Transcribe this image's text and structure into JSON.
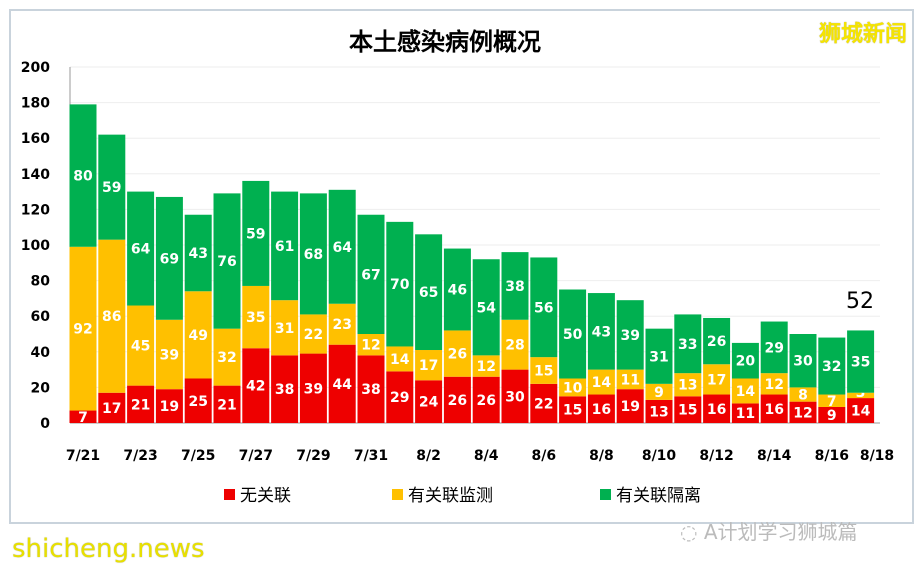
{
  "watermark_top": "狮城新闻",
  "watermark_bottom": "shicheng.news",
  "wechat_source": "A计划学习狮城篇",
  "colors": {
    "unlinked": "#ee0000",
    "linked_monitored": "#ffc000",
    "linked_quarantined": "#00b050"
  },
  "chart_data": {
    "type": "bar",
    "stacked": true,
    "title": "本土感染病例概况",
    "categories": [
      "7/21",
      "7/22",
      "7/23",
      "7/24",
      "7/25",
      "7/26",
      "7/27",
      "7/28",
      "7/29",
      "7/30",
      "7/31",
      "8/1",
      "8/2",
      "8/3",
      "8/4",
      "8/5",
      "8/6",
      "8/7",
      "8/8",
      "8/9",
      "8/10",
      "8/11",
      "8/12",
      "8/13",
      "8/14",
      "8/15",
      "8/16",
      "8/17"
    ],
    "tick_labels": [
      "7/21",
      "7/23",
      "7/25",
      "7/27",
      "7/29",
      "7/31",
      "8/2",
      "8/4",
      "8/6",
      "8/8",
      "8/10",
      "8/12",
      "8/14",
      "8/16",
      "8/18"
    ],
    "series": [
      {
        "name": "无关联",
        "values": [
          7,
          17,
          21,
          19,
          25,
          21,
          42,
          38,
          39,
          44,
          38,
          29,
          24,
          26,
          26,
          30,
          22,
          15,
          16,
          19,
          13,
          15,
          16,
          11,
          16,
          12,
          9,
          14
        ]
      },
      {
        "name": "有关联监测",
        "values": [
          92,
          86,
          45,
          39,
          49,
          32,
          35,
          31,
          22,
          23,
          12,
          14,
          17,
          26,
          12,
          28,
          15,
          10,
          14,
          11,
          9,
          13,
          17,
          14,
          12,
          8,
          7,
          3
        ]
      },
      {
        "name": "有关联隔离",
        "values": [
          80,
          59,
          64,
          69,
          43,
          76,
          59,
          61,
          68,
          64,
          67,
          70,
          65,
          46,
          54,
          38,
          56,
          50,
          43,
          39,
          31,
          33,
          26,
          20,
          29,
          30,
          32,
          35
        ]
      }
    ],
    "annotation": "52",
    "ylim": [
      0,
      200
    ],
    "yticks": [
      0,
      20,
      40,
      60,
      80,
      100,
      120,
      140,
      160,
      180,
      200
    ],
    "grid": true,
    "legend": "bottom"
  }
}
